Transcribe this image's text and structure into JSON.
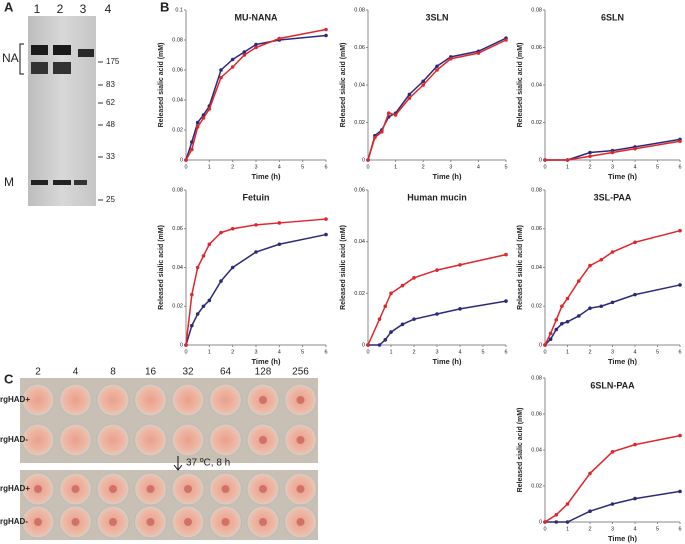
{
  "panel_labels": [
    "A",
    "B",
    "C"
  ],
  "gel": {
    "lanes": [
      "1",
      "2",
      "3",
      "4"
    ],
    "bands": [
      "NA",
      "M"
    ],
    "markers": [
      "175",
      "83",
      "62",
      "48",
      "33",
      "25"
    ]
  },
  "plate": {
    "dilutions": [
      "2",
      "4",
      "8",
      "16",
      "32",
      "64",
      "128",
      "256"
    ],
    "rows": [
      "rgHAD+",
      "rgHAD-",
      "rgHAD+",
      "rgHAD-"
    ],
    "condition": "37 ºC, 8 h"
  },
  "chart_data": [
    {
      "type": "line",
      "title": "MU-NANA",
      "xlabel": "Time (h)",
      "ylabel": "Released sialic acid (mM)",
      "x": [
        0,
        0.25,
        0.5,
        0.75,
        1,
        1.5,
        2,
        2.5,
        3,
        4,
        6
      ],
      "xlim": [
        0,
        6
      ],
      "xticks": [
        0,
        1,
        2,
        3,
        4,
        5,
        6
      ],
      "ylim": [
        0,
        0.1
      ],
      "yticks": [
        0,
        0.02,
        0.04,
        0.06,
        0.08,
        0.1
      ],
      "series": [
        {
          "color": "#2b2a7a",
          "values": [
            0,
            0.012,
            0.025,
            0.03,
            0.036,
            0.06,
            0.067,
            0.072,
            0.077,
            0.08,
            0.083
          ]
        },
        {
          "color": "#e0262b",
          "values": [
            0,
            0.007,
            0.022,
            0.028,
            0.034,
            0.055,
            0.062,
            0.07,
            0.075,
            0.081,
            0.087
          ]
        }
      ]
    },
    {
      "type": "line",
      "title": "3SLN",
      "xlabel": "Time (h)",
      "ylabel": "Released sialic acid (mM)",
      "x": [
        0,
        0.25,
        0.5,
        0.75,
        1,
        1.5,
        2,
        2.5,
        3,
        4,
        5
      ],
      "xlim": [
        0,
        5
      ],
      "xticks": [
        0,
        1,
        2,
        3,
        4,
        5
      ],
      "ylim": [
        0,
        0.08
      ],
      "yticks": [
        0,
        0.02,
        0.04,
        0.06,
        0.08
      ],
      "series": [
        {
          "color": "#2b2a7a",
          "values": [
            0,
            0.013,
            0.016,
            0.023,
            0.025,
            0.035,
            0.042,
            0.05,
            0.055,
            0.058,
            0.065
          ]
        },
        {
          "color": "#e0262b",
          "values": [
            0,
            0.012,
            0.015,
            0.025,
            0.024,
            0.033,
            0.04,
            0.048,
            0.054,
            0.057,
            0.064
          ]
        }
      ]
    },
    {
      "type": "line",
      "title": "6SLN",
      "xlabel": "Time (h)",
      "ylabel": "Released sialic acid (mM)",
      "x": [
        0,
        1,
        2,
        3,
        4,
        6
      ],
      "xlim": [
        0,
        6
      ],
      "xticks": [
        0,
        1,
        2,
        3,
        4,
        5,
        6
      ],
      "ylim": [
        0,
        0.08
      ],
      "yticks": [
        0,
        0.02,
        0.04,
        0.06,
        0.08
      ],
      "series": [
        {
          "color": "#2b2a7a",
          "values": [
            0,
            0,
            0.004,
            0.005,
            0.007,
            0.011
          ]
        },
        {
          "color": "#e0262b",
          "values": [
            0,
            0,
            0.002,
            0.004,
            0.006,
            0.01
          ]
        }
      ]
    },
    {
      "type": "line",
      "title": "Fetuin",
      "xlabel": "Time (h)",
      "ylabel": "Released sialic acid (mM)",
      "x": [
        0,
        0.25,
        0.5,
        0.75,
        1,
        1.5,
        2,
        3,
        4,
        6
      ],
      "xlim": [
        0,
        6
      ],
      "xticks": [
        0,
        1,
        2,
        3,
        4,
        5,
        6
      ],
      "ylim": [
        0,
        0.08
      ],
      "yticks": [
        0,
        0.02,
        0.04,
        0.06,
        0.08
      ],
      "series": [
        {
          "color": "#2b2a7a",
          "values": [
            0,
            0.01,
            0.016,
            0.02,
            0.023,
            0.033,
            0.04,
            0.048,
            0.052,
            0.057
          ]
        },
        {
          "color": "#e0262b",
          "values": [
            0,
            0.026,
            0.04,
            0.046,
            0.052,
            0.058,
            0.06,
            0.062,
            0.063,
            0.065
          ]
        }
      ]
    },
    {
      "type": "line",
      "title": "Human mucin",
      "xlabel": "Time (h)",
      "ylabel": "Released sialic acid (mM)",
      "x": [
        0,
        0.5,
        0.75,
        1,
        1.5,
        2,
        3,
        4,
        6
      ],
      "xlim": [
        0,
        6
      ],
      "xticks": [
        0,
        1,
        2,
        3,
        4,
        5,
        6
      ],
      "ylim": [
        0,
        0.06
      ],
      "yticks": [
        0,
        0.02,
        0.04,
        0.06
      ],
      "series": [
        {
          "color": "#2b2a7a",
          "values": [
            0,
            0,
            0.002,
            0.005,
            0.008,
            0.01,
            0.012,
            0.014,
            0.017
          ]
        },
        {
          "color": "#e0262b",
          "values": [
            0,
            0.01,
            0.015,
            0.02,
            0.023,
            0.026,
            0.029,
            0.031,
            0.035
          ]
        }
      ]
    },
    {
      "type": "line",
      "title": "3SL-PAA",
      "xlabel": "Time (h)",
      "ylabel": "Released sialic acid (mM)",
      "x": [
        0,
        0.25,
        0.5,
        0.75,
        1,
        1.5,
        2,
        2.5,
        3,
        4,
        6
      ],
      "xlim": [
        0,
        6
      ],
      "xticks": [
        0,
        1,
        2,
        3,
        4,
        5,
        6
      ],
      "ylim": [
        0,
        0.08
      ],
      "yticks": [
        0,
        0.02,
        0.04,
        0.06,
        0.08
      ],
      "series": [
        {
          "color": "#2b2a7a",
          "values": [
            0,
            0.003,
            0.008,
            0.011,
            0.012,
            0.015,
            0.019,
            0.02,
            0.022,
            0.026,
            0.031
          ]
        },
        {
          "color": "#e0262b",
          "values": [
            0,
            0.006,
            0.013,
            0.02,
            0.024,
            0.033,
            0.041,
            0.044,
            0.048,
            0.053,
            0.059
          ]
        }
      ]
    },
    {
      "type": "line",
      "title": "6SLN-PAA",
      "xlabel": "Time (h)",
      "ylabel": "Released sialic acid (mM)",
      "x": [
        0,
        0.5,
        1,
        2,
        3,
        4,
        6
      ],
      "xlim": [
        0,
        6
      ],
      "xticks": [
        0,
        1,
        2,
        3,
        4,
        5,
        6
      ],
      "ylim": [
        0,
        0.08
      ],
      "yticks": [
        0,
        0.02,
        0.04,
        0.06,
        0.08
      ],
      "series": [
        {
          "color": "#2b2a7a",
          "values": [
            0,
            0,
            0,
            0.006,
            0.01,
            0.013,
            0.017
          ]
        },
        {
          "color": "#e0262b",
          "values": [
            0,
            0.004,
            0.01,
            0.027,
            0.039,
            0.043,
            0.048
          ]
        }
      ]
    }
  ]
}
